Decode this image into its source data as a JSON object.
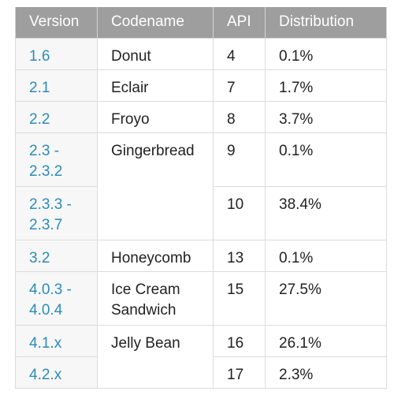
{
  "table": {
    "headers": {
      "version": "Version",
      "codename": "Codename",
      "api": "API",
      "distribution": "Distribution"
    },
    "rows": [
      {
        "version": "1.6",
        "codename": "Donut",
        "api": "4",
        "distribution": "0.1%"
      },
      {
        "version": "2.1",
        "codename": "Eclair",
        "api": "7",
        "distribution": "1.7%"
      },
      {
        "version": "2.2",
        "codename": "Froyo",
        "api": "8",
        "distribution": "3.7%"
      },
      {
        "version": "2.3 - 2.3.2",
        "codename": "Gingerbread",
        "api": "9",
        "distribution": "0.1%"
      },
      {
        "version": "2.3.3 - 2.3.7",
        "codename": "",
        "api": "10",
        "distribution": "38.4%"
      },
      {
        "version": "3.2",
        "codename": "Honeycomb",
        "api": "13",
        "distribution": "0.1%"
      },
      {
        "version": "4.0.3 - 4.0.4",
        "codename": "Ice Cream Sandwich",
        "api": "15",
        "distribution": "27.5%"
      },
      {
        "version": "4.1.x",
        "codename": "Jelly Bean",
        "api": "16",
        "distribution": "26.1%"
      },
      {
        "version": "4.2.x",
        "codename": "",
        "api": "17",
        "distribution": "2.3%"
      }
    ]
  },
  "colors": {
    "header_bg": "#9e9e9e",
    "header_text": "#ffffff",
    "version_link": "#2b8cba",
    "version_bg": "#f7f7f7",
    "border": "#dcdcdc",
    "body_text": "#222222"
  }
}
